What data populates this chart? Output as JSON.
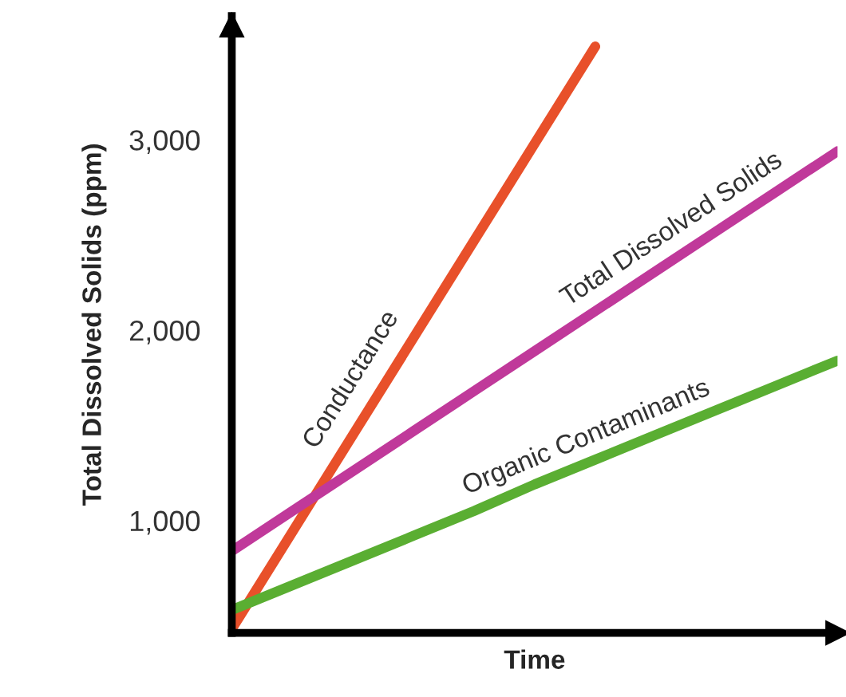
{
  "chart_data": {
    "type": "line",
    "xlabel": "Time",
    "ylabel": "Total Dissolved Solids (ppm)",
    "categories": [
      null,
      null,
      null,
      null,
      null,
      null,
      null,
      null,
      null,
      null,
      null
    ],
    "series": [
      {
        "name": "Conductance",
        "color": "#e8502a",
        "values": [
          430,
          940,
          1450,
          1960,
          2470,
          2980,
          3490,
          null,
          null,
          null,
          null
        ]
      },
      {
        "name": "Total Dissolved Solids",
        "color": "#c0399a",
        "values": [
          840,
          1050,
          1260,
          1470,
          1680,
          1890,
          2100,
          2310,
          2520,
          2730,
          2940
        ]
      },
      {
        "name": "Organic Contaminants",
        "color": "#5aae32",
        "values": [
          530,
          660,
          790,
          920,
          1050,
          1190,
          1320,
          1450,
          1580,
          1710,
          1840
        ]
      }
    ],
    "ylim": [
      410,
      3650
    ],
    "yticks": [
      {
        "value": 1000,
        "label": "1,000"
      },
      {
        "value": 2000,
        "label": "2,000"
      },
      {
        "value": 3000,
        "label": "3,000"
      }
    ],
    "grid": false,
    "legend": false,
    "marker": "none",
    "line_style": "solid"
  }
}
